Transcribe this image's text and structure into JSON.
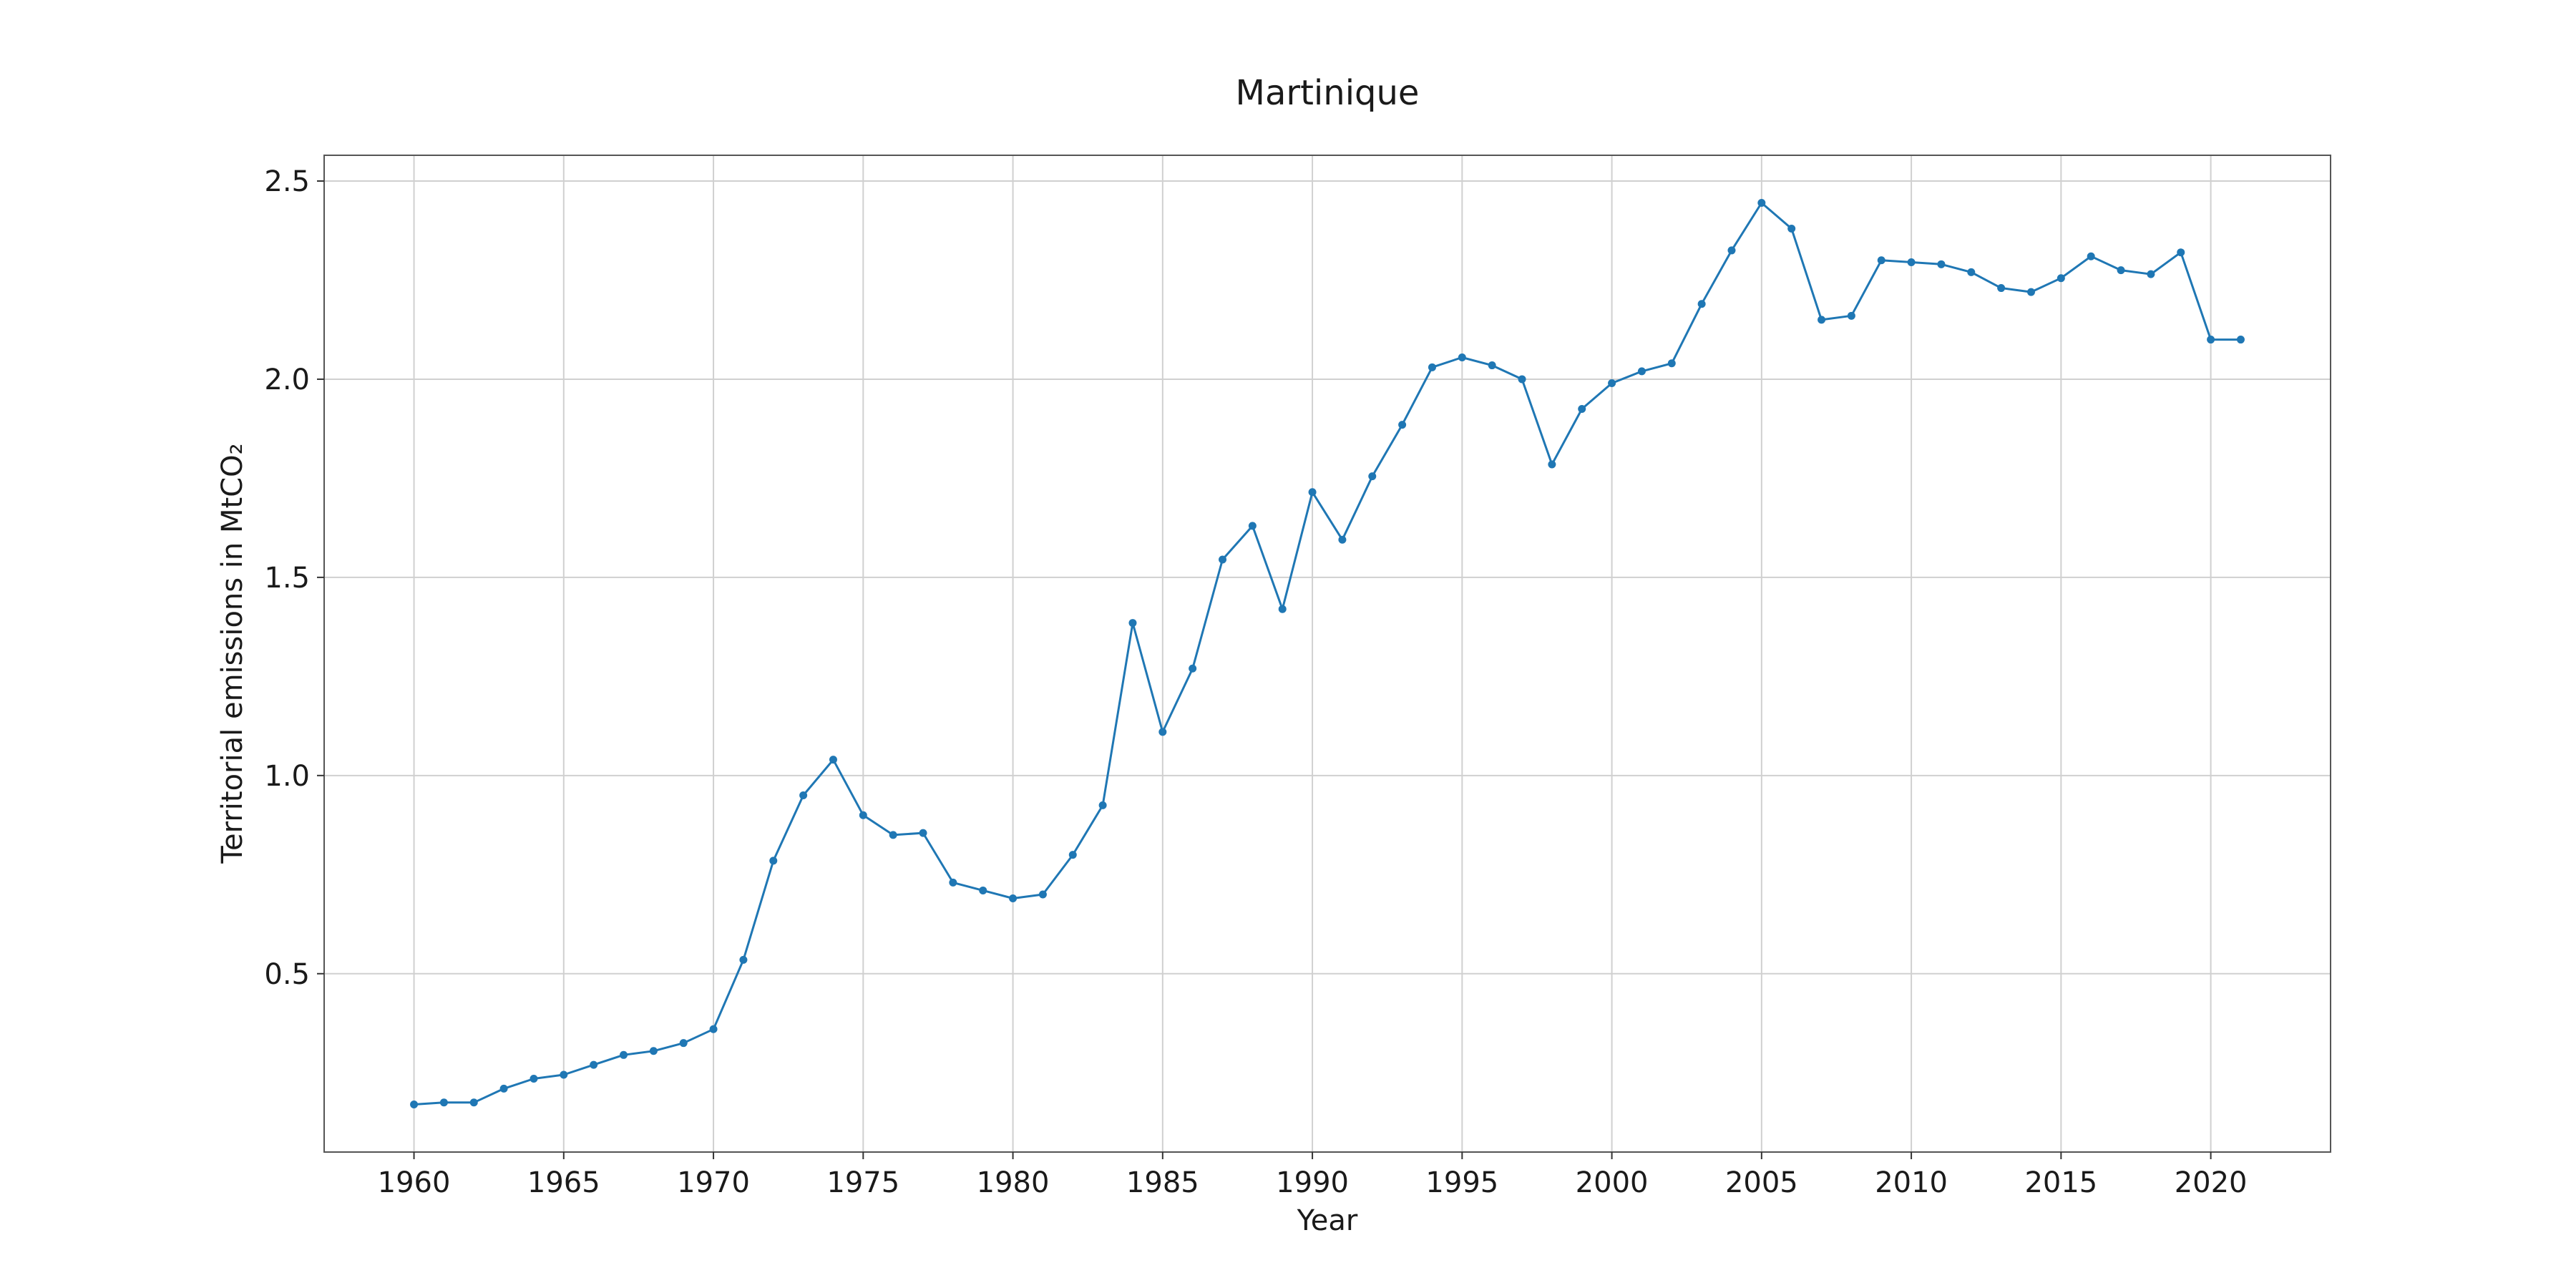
{
  "chart_data": {
    "type": "line",
    "title": "Martinique",
    "xlabel": "Year",
    "ylabel": "Territorial emissions in MtCO₂",
    "xlim": [
      1957,
      2024
    ],
    "ylim": [
      0.05,
      2.565
    ],
    "grid": true,
    "color": "#1f77b4",
    "x_ticks": [
      1960,
      1965,
      1970,
      1975,
      1980,
      1985,
      1990,
      1995,
      2000,
      2005,
      2010,
      2015,
      2020
    ],
    "y_ticks": [
      0.5,
      1.0,
      1.5,
      2.0,
      2.5
    ],
    "x_tick_labels": [
      "1960",
      "1965",
      "1970",
      "1975",
      "1980",
      "1985",
      "1990",
      "1995",
      "2000",
      "2005",
      "2010",
      "2015",
      "2020"
    ],
    "y_tick_labels": [
      "0.5",
      "1.0",
      "1.5",
      "2.0",
      "2.5"
    ],
    "x": [
      1960,
      1961,
      1962,
      1963,
      1964,
      1965,
      1966,
      1967,
      1968,
      1969,
      1970,
      1971,
      1972,
      1973,
      1974,
      1975,
      1976,
      1977,
      1978,
      1979,
      1980,
      1981,
      1982,
      1983,
      1984,
      1985,
      1986,
      1987,
      1988,
      1989,
      1990,
      1991,
      1992,
      1993,
      1994,
      1995,
      1996,
      1997,
      1998,
      1999,
      2000,
      2001,
      2002,
      2003,
      2004,
      2005,
      2006,
      2007,
      2008,
      2009,
      2010,
      2011,
      2012,
      2013,
      2014,
      2015,
      2016,
      2017,
      2018,
      2019,
      2020,
      2021
    ],
    "values": [
      0.17,
      0.175,
      0.175,
      0.21,
      0.235,
      0.245,
      0.27,
      0.295,
      0.305,
      0.325,
      0.36,
      0.535,
      0.785,
      0.95,
      1.04,
      0.9,
      0.85,
      0.855,
      0.73,
      0.71,
      0.69,
      0.7,
      0.8,
      0.925,
      1.385,
      1.11,
      1.27,
      1.545,
      1.63,
      1.42,
      1.715,
      1.595,
      1.755,
      1.885,
      2.03,
      2.055,
      2.035,
      2.0,
      1.785,
      1.925,
      1.99,
      2.02,
      2.04,
      2.19,
      2.325,
      2.445,
      2.38,
      2.15,
      2.16,
      2.3,
      2.295,
      2.29,
      2.27,
      2.23,
      2.22,
      2.255,
      2.31,
      2.275,
      2.265,
      2.32,
      2.1,
      2.1
    ]
  }
}
